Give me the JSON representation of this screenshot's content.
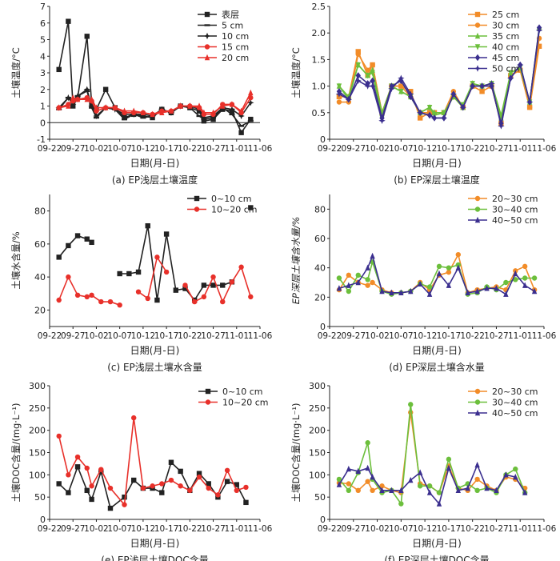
{
  "chart_data": [
    {
      "type": "line",
      "caption": "(a) EP浅层土壤温度",
      "xlabel": "日期(月-日)",
      "ylabel": "土壤温度/°C",
      "ylim": [
        -1,
        7
      ],
      "yticks": [
        "-1",
        "0",
        "1",
        "2",
        "3",
        "4",
        "5",
        "6",
        "7"
      ],
      "xticks": [
        "09-22",
        "09-27",
        "10-02",
        "10-07",
        "10-12",
        "10-17",
        "10-22",
        "10-27",
        "11-01",
        "11-06"
      ],
      "x": [
        "09-24",
        "09-26",
        "09-27",
        "09-28",
        "09-30",
        "10-01",
        "10-02",
        "10-04",
        "10-06",
        "10-08",
        "10-10",
        "10-12",
        "10-14",
        "10-16",
        "10-18",
        "10-20",
        "10-22",
        "10-24",
        "10-25",
        "10-27",
        "10-29",
        "10-31",
        "11-02",
        "11-04"
      ],
      "zero_line": true,
      "legend_position": "top-right",
      "series": [
        {
          "name": "表层",
          "color": "#222222",
          "marker": "square",
          "values": [
            3.2,
            6.1,
            1.0,
            1.5,
            5.2,
            1.1,
            0.8,
            2.0,
            0.9,
            0.3,
            0.5,
            0.4,
            0.3,
            0.8,
            0.6,
            1.0,
            0.9,
            0.7,
            0.1,
            0.2,
            0.8,
            0.7,
            -0.6,
            0.2
          ]
        },
        {
          "name": "5 cm",
          "color": "#222222",
          "marker": "dash",
          "values": [
            0.8,
            1.5,
            1.3,
            1.6,
            1.9,
            0.9,
            0.3,
            0.9,
            0.8,
            0.2,
            0.5,
            0.3,
            0.4,
            0.8,
            0.6,
            1.0,
            0.9,
            0.4,
            0.2,
            0.3,
            0.9,
            0.5,
            -0.2,
            0.1
          ]
        },
        {
          "name": "10 cm",
          "color": "#222222",
          "marker": "star",
          "values": [
            0.9,
            1.5,
            1.1,
            1.6,
            2.0,
            1.0,
            0.4,
            0.9,
            0.8,
            0.5,
            0.5,
            0.5,
            0.4,
            0.8,
            0.6,
            1.0,
            1.0,
            0.8,
            0.3,
            0.4,
            0.9,
            0.8,
            0.4,
            1.2
          ]
        },
        {
          "name": "15 cm",
          "color": "#e8302a",
          "marker": "circle",
          "values": [
            0.9,
            1.1,
            1.3,
            1.4,
            1.5,
            1.3,
            0.7,
            0.9,
            0.9,
            0.6,
            0.6,
            0.6,
            0.5,
            0.7,
            0.7,
            1.0,
            1.0,
            0.9,
            0.5,
            0.5,
            1.1,
            1.1,
            0.6,
            1.5
          ]
        },
        {
          "name": "20 cm",
          "color": "#e8302a",
          "marker": "triangle",
          "values": [
            0.9,
            1.0,
            1.5,
            1.4,
            1.4,
            1.4,
            0.9,
            0.9,
            0.9,
            0.7,
            0.7,
            0.6,
            0.5,
            0.6,
            0.7,
            1.0,
            1.0,
            1.0,
            0.6,
            0.6,
            1.0,
            1.1,
            0.7,
            1.8
          ]
        }
      ]
    },
    {
      "type": "line",
      "caption": "(b) EP深层土壤温度",
      "xlabel": "日期(月-日)",
      "ylabel": "土壤温度/°C",
      "ylim": [
        0,
        2.5
      ],
      "yticks": [
        "0",
        "0.5",
        "1.0",
        "1.5",
        "2.0",
        "2.5"
      ],
      "xticks": [
        "09-22",
        "09-27",
        "10-02",
        "10-07",
        "10-12",
        "10-17",
        "10-22",
        "10-27",
        "11-01",
        "11-06"
      ],
      "x": [
        "09-24",
        "09-26",
        "09-28",
        "09-30",
        "10-01",
        "10-03",
        "10-05",
        "10-07",
        "10-09",
        "10-11",
        "10-13",
        "10-14",
        "10-16",
        "10-18",
        "10-20",
        "10-22",
        "10-24",
        "10-26",
        "10-28",
        "10-30",
        "11-01",
        "11-03",
        "11-05"
      ],
      "legend_position": "top-right",
      "series": [
        {
          "name": "25 cm",
          "color": "#f28c28",
          "marker": "square",
          "values": [
            0.8,
            0.8,
            1.65,
            1.2,
            1.4,
            0.5,
            1.0,
            1.0,
            0.9,
            0.4,
            0.5,
            0.5,
            0.5,
            0.8,
            0.6,
            1.0,
            0.9,
            1.0,
            0.3,
            1.2,
            1.3,
            0.6,
            1.75
          ]
        },
        {
          "name": "30 cm",
          "color": "#f28c28",
          "marker": "circle",
          "values": [
            0.7,
            0.7,
            1.6,
            1.3,
            1.4,
            0.5,
            1.0,
            1.0,
            0.8,
            0.5,
            0.5,
            0.5,
            0.5,
            0.9,
            0.6,
            1.0,
            1.0,
            1.0,
            0.3,
            1.2,
            1.3,
            0.6,
            1.9
          ]
        },
        {
          "name": "35 cm",
          "color": "#6cbf3c",
          "marker": "triangle",
          "values": [
            1.0,
            0.8,
            1.4,
            1.2,
            1.3,
            0.5,
            1.0,
            0.9,
            0.8,
            0.5,
            0.6,
            0.5,
            0.5,
            0.8,
            0.6,
            1.05,
            1.0,
            1.05,
            0.4,
            1.25,
            1.35,
            0.7,
            2.1
          ]
        },
        {
          "name": "40 cm",
          "color": "#6cbf3c",
          "marker": "triangle-down",
          "values": [
            1.0,
            0.75,
            1.4,
            1.2,
            1.25,
            0.4,
            1.0,
            0.9,
            0.8,
            0.5,
            0.6,
            0.45,
            0.5,
            0.8,
            0.65,
            1.05,
            1.0,
            1.05,
            0.45,
            1.25,
            1.35,
            0.7,
            2.05
          ]
        },
        {
          "name": "45 cm",
          "color": "#3b2f8f",
          "marker": "diamond",
          "values": [
            0.9,
            0.75,
            1.2,
            1.05,
            1.1,
            0.4,
            1.0,
            1.1,
            0.8,
            0.5,
            0.45,
            0.4,
            0.4,
            0.85,
            0.6,
            1.0,
            1.0,
            1.0,
            0.3,
            1.15,
            1.4,
            0.7,
            2.1
          ]
        },
        {
          "name": "50 cm",
          "color": "#3b2f8f",
          "marker": "star",
          "values": [
            0.85,
            0.75,
            1.1,
            1.0,
            1.0,
            0.35,
            0.95,
            1.15,
            0.85,
            0.5,
            0.45,
            0.4,
            0.4,
            0.85,
            0.6,
            1.0,
            1.0,
            1.05,
            0.25,
            1.15,
            1.4,
            0.7,
            2.05
          ]
        }
      ]
    },
    {
      "type": "line",
      "caption": "(c) EP浅层土壤水含量",
      "xlabel": "日期(月-日)",
      "ylabel": "土壤水含量/%",
      "ylim": [
        10,
        90
      ],
      "yticks": [
        "20",
        "40",
        "60",
        "80"
      ],
      "xticks": [
        "09-22",
        "09-27",
        "10-02",
        "10-07",
        "10-12",
        "10-17",
        "10-22",
        "10-27",
        "11-01",
        "11-06"
      ],
      "x": [
        "09-24",
        "09-26",
        "09-28",
        "09-30",
        "10-01",
        "10-03",
        "10-05",
        "10-07",
        "10-09",
        "10-11",
        "10-13",
        "10-15",
        "10-17",
        "10-19",
        "10-21",
        "10-23",
        "10-25",
        "10-27",
        "10-29",
        "10-31",
        "11-02",
        "11-04"
      ],
      "legend_position": "top-center",
      "series": [
        {
          "name": "0~10 cm",
          "color": "#222222",
          "marker": "square",
          "values": [
            52,
            59,
            65,
            63,
            61,
            null,
            null,
            42,
            42,
            43,
            71,
            26,
            66,
            32,
            33,
            26,
            35,
            35,
            35,
            37,
            null,
            82
          ]
        },
        {
          "name": "10~20 cm",
          "color": "#e8302a",
          "marker": "circle",
          "values": [
            26,
            40,
            29,
            28,
            29,
            25,
            25,
            23,
            null,
            31,
            27,
            52,
            43,
            null,
            35,
            25,
            28,
            40,
            25,
            37,
            46,
            28
          ]
        }
      ]
    },
    {
      "type": "line",
      "caption": "(d) EP深层土壤含水量",
      "xlabel": "日期(月-日)",
      "ylabel": "EP深层土壤含水量/%",
      "ylim": [
        0,
        90
      ],
      "yticks": [
        "0",
        "20",
        "40",
        "60",
        "80"
      ],
      "xticks": [
        "09-22",
        "09-27",
        "10-02",
        "10-07",
        "10-12",
        "10-17",
        "10-22",
        "10-27",
        "11-01",
        "11-06"
      ],
      "x": [
        "09-24",
        "09-26",
        "09-28",
        "09-30",
        "10-01",
        "10-03",
        "10-05",
        "10-07",
        "10-09",
        "10-11",
        "10-13",
        "10-15",
        "10-17",
        "10-19",
        "10-21",
        "10-23",
        "10-25",
        "10-27",
        "10-29",
        "10-31",
        "11-02",
        "11-04"
      ],
      "legend_position": "top-right",
      "series": [
        {
          "name": "20~30 cm",
          "color": "#f28c28",
          "marker": "circle",
          "values": [
            25,
            35,
            30,
            28,
            30,
            25,
            23,
            23,
            24,
            30,
            25,
            35,
            37,
            49,
            23,
            25,
            26,
            27,
            25,
            38,
            41,
            25
          ]
        },
        {
          "name": "30~40 cm",
          "color": "#6cbf3c",
          "marker": "circle",
          "values": [
            33,
            24,
            35,
            32,
            44,
            24,
            22,
            23,
            24,
            29,
            27,
            41,
            40,
            42,
            22,
            23,
            27,
            25,
            30,
            32,
            33,
            33
          ]
        },
        {
          "name": "40~50 cm",
          "color": "#3b2f8f",
          "marker": "triangle",
          "values": [
            26,
            28,
            30,
            40,
            48,
            24,
            23,
            23,
            24,
            29,
            22,
            36,
            28,
            40,
            23,
            24,
            26,
            26,
            22,
            36,
            28,
            24
          ]
        }
      ]
    },
    {
      "type": "line",
      "caption": "(e) EP浅层土壤DOC含量",
      "xlabel": "日期(月-日)",
      "ylabel": "土壤DOC含量/(mg·L⁻¹)",
      "ylim": [
        0,
        300
      ],
      "yticks": [
        "0",
        "50",
        "100",
        "150",
        "200",
        "250",
        "300"
      ],
      "xticks": [
        "09-22",
        "09-27",
        "10-02",
        "10-07",
        "10-12",
        "10-17",
        "10-22",
        "10-27",
        "11-01",
        "11-06"
      ],
      "x": [
        "09-24",
        "09-26",
        "09-28",
        "09-30",
        "10-01",
        "10-03",
        "10-05",
        "10-08",
        "10-10",
        "10-12",
        "10-14",
        "10-16",
        "10-18",
        "10-20",
        "10-22",
        "10-24",
        "10-26",
        "10-28",
        "10-30",
        "11-01",
        "11-03",
        "11-05"
      ],
      "legend_position": "top-right",
      "series": [
        {
          "name": "0~10 cm",
          "color": "#222222",
          "marker": "square",
          "values": [
            80,
            60,
            118,
            65,
            45,
            107,
            25,
            50,
            88,
            70,
            70,
            60,
            128,
            108,
            65,
            103,
            80,
            50,
            85,
            78,
            38,
            null
          ]
        },
        {
          "name": "10~20 cm",
          "color": "#e8302a",
          "marker": "circle",
          "values": [
            187,
            100,
            140,
            115,
            75,
            112,
            70,
            33,
            228,
            70,
            75,
            80,
            88,
            75,
            65,
            95,
            70,
            55,
            110,
            65,
            72,
            null
          ]
        }
      ]
    },
    {
      "type": "line",
      "caption": "(f) EP深层土壤DOC含量",
      "xlabel": "日期(月-日)",
      "ylabel": "土壤DOC含量/(mg·L⁻¹)",
      "ylim": [
        0,
        300
      ],
      "yticks": [
        "0",
        "50",
        "100",
        "150",
        "200",
        "250",
        "300"
      ],
      "xticks": [
        "09-22",
        "09-27",
        "10-02",
        "10-07",
        "10-12",
        "10-17",
        "10-22",
        "10-27",
        "11-01",
        "11-06"
      ],
      "x": [
        "09-24",
        "09-26",
        "09-28",
        "09-30",
        "10-01",
        "10-03",
        "10-05",
        "10-07",
        "10-09",
        "10-11",
        "10-13",
        "10-15",
        "10-17",
        "10-19",
        "10-21",
        "10-23",
        "10-25",
        "10-27",
        "10-29",
        "10-31",
        "11-02",
        "11-04"
      ],
      "legend_position": "top-right",
      "series": [
        {
          "name": "20~30 cm",
          "color": "#f28c28",
          "marker": "circle",
          "values": [
            82,
            80,
            65,
            85,
            65,
            75,
            65,
            60,
            240,
            80,
            75,
            60,
            120,
            70,
            65,
            90,
            75,
            65,
            95,
            90,
            70,
            null
          ]
        },
        {
          "name": "30~40 cm",
          "color": "#6cbf3c",
          "marker": "circle",
          "values": [
            90,
            65,
            105,
            172,
            90,
            60,
            65,
            35,
            258,
            75,
            75,
            60,
            135,
            70,
            80,
            65,
            70,
            60,
            100,
            113,
            60,
            null
          ]
        },
        {
          "name": "40~50 cm",
          "color": "#3b2f8f",
          "marker": "triangle",
          "values": [
            78,
            113,
            108,
            115,
            95,
            65,
            65,
            65,
            88,
            105,
            60,
            35,
            115,
            65,
            70,
            122,
            70,
            65,
            100,
            95,
            60,
            null
          ]
        }
      ]
    }
  ]
}
